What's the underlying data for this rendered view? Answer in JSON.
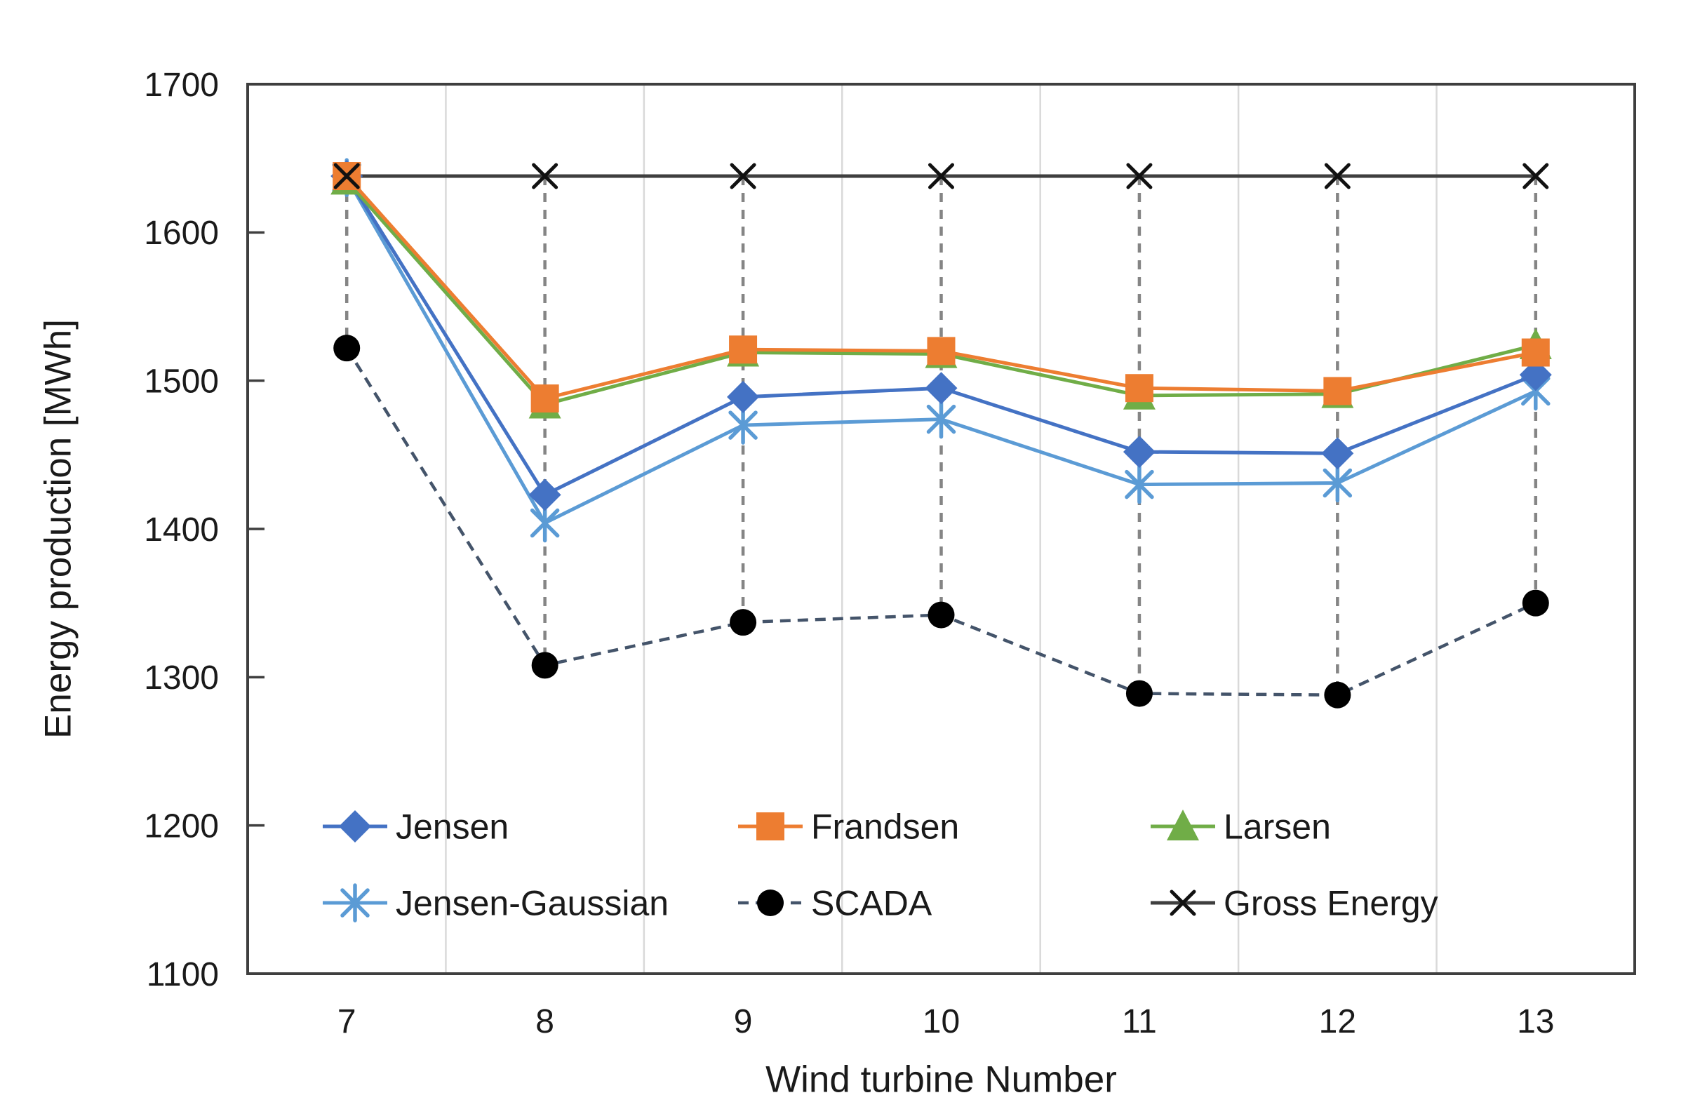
{
  "chart_data": {
    "type": "line",
    "title": "",
    "xlabel": "Wind turbine Number",
    "ylabel": "Energy production [MWh]",
    "categories": [
      7,
      8,
      9,
      10,
      11,
      12,
      13
    ],
    "x_tick_labels": [
      "7",
      "8",
      "9",
      "10",
      "11",
      "12",
      "13"
    ],
    "y_ticks": [
      "1700",
      "1600",
      "1500",
      "1400",
      "1300",
      "1200",
      "1100"
    ],
    "ylim": [
      1100,
      1700
    ],
    "y_major_step": 100,
    "grid": "vertical-only",
    "legend_position": "inside-bottom",
    "series": [
      {
        "name": "Jensen",
        "color": "#4472C4",
        "marker": "diamond",
        "line": "solid",
        "values": [
          1638,
          1423,
          1489,
          1495,
          1452,
          1451,
          1504
        ]
      },
      {
        "name": "Frandsen",
        "color": "#ED7D31",
        "marker": "square",
        "line": "solid",
        "values": [
          1638,
          1488,
          1521,
          1520,
          1495,
          1493,
          1519
        ]
      },
      {
        "name": "Larsen",
        "color": "#70AD47",
        "marker": "triangle",
        "line": "solid",
        "values": [
          1635,
          1484,
          1519,
          1518,
          1490,
          1491,
          1524
        ]
      },
      {
        "name": "Jensen-Gaussian",
        "color": "#5B9BD5",
        "marker": "asterisk",
        "line": "solid",
        "values": [
          1637,
          1404,
          1470,
          1474,
          1430,
          1431,
          1493
        ]
      },
      {
        "name": "SCADA",
        "color": "#44546A",
        "marker": "circle",
        "marker_color": "#000000",
        "line": "dashed",
        "values": [
          1522,
          1308,
          1337,
          1342,
          1289,
          1288,
          1350
        ]
      },
      {
        "name": "Gross Energy",
        "color": "#3F3F3F",
        "marker": "xcross",
        "marker_color": "#111111",
        "line": "solid",
        "values": [
          1638,
          1638,
          1638,
          1638,
          1638,
          1638,
          1638
        ]
      }
    ],
    "drop_lines": {
      "from_series": "Gross Energy",
      "to_series": "SCADA",
      "color": "#858585",
      "style": "dashed"
    },
    "colors": {
      "gridline": "#D9D9D9",
      "axis_border": "#3F3F3F",
      "text": "#1A1A1A",
      "drop_line": "#858585"
    }
  }
}
